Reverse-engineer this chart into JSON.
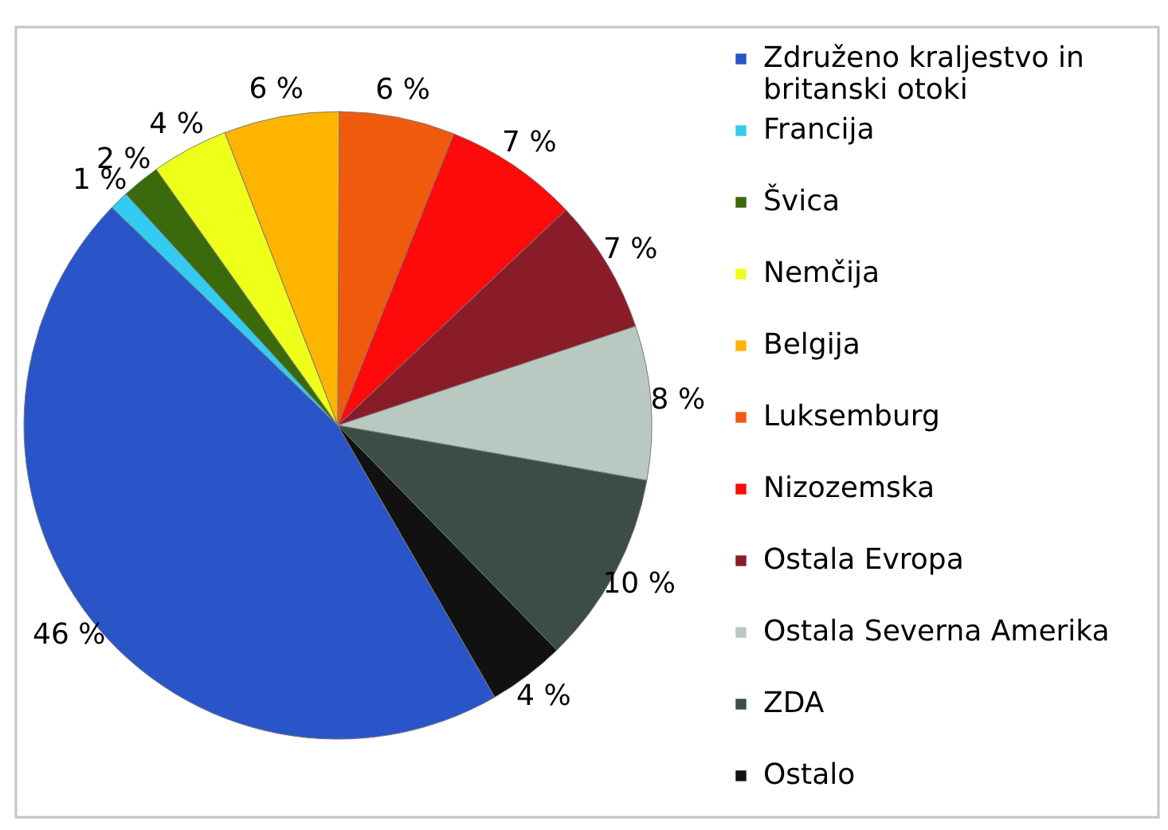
{
  "chart_data": {
    "type": "pie",
    "categories": [
      "Združeno kraljestvo in britanski otoki",
      "Francija",
      "Švica",
      "Nemčija",
      "Belgija",
      "Luksemburg",
      "Nizozemska",
      "Ostala Evropa",
      "Ostala Severna Amerika",
      "ZDA",
      "Ostalo"
    ],
    "values": [
      46,
      1,
      2,
      4,
      6,
      6,
      7,
      7,
      8,
      10,
      4
    ],
    "colors": [
      "#2a55c8",
      "#33ccf0",
      "#3a6a0c",
      "#eeff1a",
      "#ffb400",
      "#f05a0c",
      "#ff0a0a",
      "#8a1c2a",
      "#b9c9c1",
      "#3b4d45",
      "#111111"
    ],
    "value_labels": [
      "46 %",
      "1 %",
      "2 %",
      "4 %",
      "6 %",
      "6 %",
      "7 %",
      "7 %",
      "8 %",
      "10 %",
      "4 %"
    ],
    "legend": "right"
  }
}
